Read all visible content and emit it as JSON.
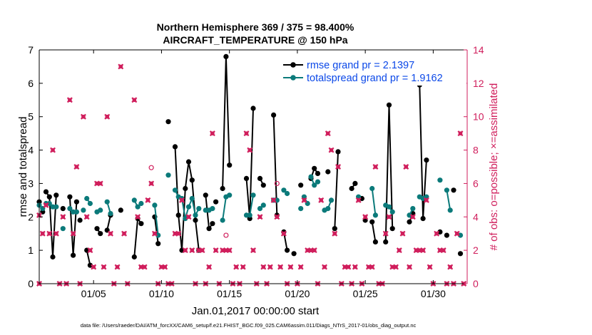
{
  "chart_data": {
    "type": "line",
    "title_line1": "Northern Hemisphere 369 / 375 = 98.400%",
    "title_line2": "AIRCRAFT_TEMPERATURE @ 150 hPa",
    "xlabel": "Jan.01,2017 00:00:00 start",
    "ylabel_left": "rmse and totalspread",
    "ylabel_right": "# of obs: o=possible; ×=assimilated",
    "footer": "data file: /Users/raeder/DAI/ATM_forcXX/CAM6_setup/f.e21.FHIST_BGC.f09_025.CAM6assim.011/Diags_NTrS_2017-01/obs_diag_output.nc",
    "xlim": [
      1.0,
      32.5
    ],
    "ylim_left": [
      0,
      7
    ],
    "ylim_right": [
      0,
      14
    ],
    "x_ticks": [
      {
        "value": 5,
        "label": "01/05"
      },
      {
        "value": 10,
        "label": "01/10"
      },
      {
        "value": 15,
        "label": "01/15"
      },
      {
        "value": 20,
        "label": "01/20"
      },
      {
        "value": 25,
        "label": "01/25"
      },
      {
        "value": 30,
        "label": "01/30"
      }
    ],
    "y_ticks_left": [
      0,
      1,
      2,
      3,
      4,
      5,
      6,
      7
    ],
    "y_ticks_right": [
      0,
      2,
      4,
      6,
      8,
      10,
      12,
      14
    ],
    "colors": {
      "rmse": "#000000",
      "spread": "#0b7a7a",
      "obs": "#d01e5c",
      "legend_text": "#0b48e8"
    },
    "series": [
      {
        "name": "rmse grand pr = 2.1397",
        "color": "#000000",
        "segments": [
          [
            [
              1.0,
              2.45
            ],
            [
              1.25,
              2.15
            ]
          ],
          [
            [
              1.5,
              2.75
            ],
            [
              1.75,
              2.6
            ],
            [
              2.0,
              0.8
            ],
            [
              2.25,
              2.65
            ]
          ],
          [
            [
              2.75,
              2.25
            ]
          ],
          [
            [
              3.25,
              2.6
            ],
            [
              3.5,
              0.85
            ],
            [
              3.75,
              2.45
            ]
          ],
          [
            [
              4.0,
              1.9
            ]
          ],
          [
            [
              4.5,
              1.0
            ],
            [
              4.75,
              0.55
            ]
          ],
          [
            [
              5.25,
              1.65
            ],
            [
              5.5,
              1.5
            ]
          ],
          [
            [
              6.0,
              1.6
            ],
            [
              6.25,
              2.05
            ]
          ],
          [
            [
              7.0,
              2.2
            ]
          ],
          [
            [
              8.0,
              0.8
            ],
            [
              8.25,
              1.95
            ],
            [
              8.5,
              1.8
            ]
          ],
          [
            [
              9.5,
              2.0
            ],
            [
              9.75,
              1.2
            ]
          ],
          [
            [
              10.5,
              4.85
            ]
          ],
          [
            [
              11.0,
              4.1
            ],
            [
              11.25,
              2.05
            ],
            [
              11.5,
              1.0
            ],
            [
              11.75,
              2.85
            ],
            [
              12.0,
              3.65
            ],
            [
              12.25,
              3.1
            ],
            [
              12.5,
              1.9
            ],
            [
              12.75,
              1.0
            ]
          ],
          [
            [
              13.25,
              2.65
            ],
            [
              13.5,
              1.65
            ],
            [
              13.75,
              1.8
            ]
          ],
          [
            [
              14.0,
              2.45
            ]
          ],
          [
            [
              14.5,
              2.85
            ],
            [
              14.75,
              6.8
            ],
            [
              15.0,
              3.55
            ]
          ],
          [
            [
              16.25,
              3.15
            ],
            [
              16.5,
              1.95
            ],
            [
              16.75,
              5.25
            ]
          ],
          [
            [
              17.25,
              3.15
            ],
            [
              17.5,
              2.95
            ]
          ],
          [
            [
              18.25,
              5.05
            ],
            [
              18.5,
              2.05
            ]
          ],
          [
            [
              19.0,
              1.55
            ],
            [
              19.25,
              1.0
            ]
          ],
          [
            [
              19.75,
              0.9
            ]
          ],
          [
            [
              20.25,
              2.95
            ]
          ],
          [
            [
              21.0,
              3.15
            ],
            [
              21.25,
              3.45
            ],
            [
              21.5,
              3.3
            ]
          ],
          [
            [
              22.25,
              3.35
            ]
          ],
          [
            [
              22.75,
              1.65
            ],
            [
              23.0,
              3.95
            ]
          ],
          [
            [
              24.0,
              2.85
            ],
            [
              24.25,
              3.0
            ]
          ],
          [
            [
              24.75,
              2.55
            ]
          ],
          [
            [
              25.0,
              1.9
            ]
          ],
          [
            [
              25.5,
              1.85
            ],
            [
              25.75,
              1.25
            ]
          ],
          [
            [
              26.5,
              1.25
            ],
            [
              26.75,
              5.35
            ],
            [
              27.0,
              1.65
            ]
          ],
          [
            [
              28.25,
              1.85
            ],
            [
              28.5,
              2.1
            ]
          ],
          [
            [
              29.0,
              5.95
            ],
            [
              29.25,
              1.95
            ],
            [
              29.5,
              3.7
            ]
          ],
          [
            [
              30.5,
              1.55
            ]
          ],
          [
            [
              31.0,
              1.45
            ]
          ],
          [
            [
              31.5,
              2.8
            ]
          ],
          [
            [
              32.0,
              0.9
            ]
          ]
        ]
      },
      {
        "name": "totalspread grand pr = 1.9162",
        "color": "#0b7a7a",
        "segments": [
          [
            [
              1.0,
              2.35
            ],
            [
              1.25,
              2.25
            ]
          ],
          [
            [
              1.5,
              2.4
            ],
            [
              1.75,
              2.4
            ],
            [
              2.0,
              2.3
            ],
            [
              2.25,
              2.3
            ]
          ],
          [
            [
              2.75,
              1.65
            ]
          ],
          [
            [
              3.25,
              2.25
            ],
            [
              3.5,
              2.15
            ],
            [
              3.75,
              2.15
            ]
          ],
          [
            [
              4.25,
              2.2
            ]
          ],
          [
            [
              4.5,
              2.55
            ],
            [
              4.75,
              2.4
            ]
          ],
          [
            [
              5.25,
              2.15
            ],
            [
              5.5,
              2.2
            ]
          ],
          [
            [
              6.0,
              2.45
            ],
            [
              6.25,
              2.1
            ]
          ],
          [
            [
              8.0,
              2.5
            ],
            [
              8.25,
              2.3
            ],
            [
              8.5,
              2.4
            ]
          ],
          [
            [
              9.5,
              2.35
            ],
            [
              9.75,
              1.45
            ]
          ],
          [
            [
              10.5,
              3.25
            ]
          ],
          [
            [
              11.0,
              2.8
            ],
            [
              11.25,
              2.6
            ],
            [
              11.5,
              2.55
            ],
            [
              11.75,
              1.95
            ],
            [
              12.0,
              2.3
            ],
            [
              12.25,
              2.55
            ],
            [
              12.5,
              2.05
            ],
            [
              12.75,
              2.25
            ]
          ],
          [
            [
              13.25,
              2.2
            ],
            [
              13.5,
              2.2
            ],
            [
              13.75,
              2.25
            ]
          ],
          [
            [
              14.5,
              1.9
            ],
            [
              14.75,
              2.6
            ],
            [
              15.0,
              2.65
            ]
          ],
          [
            [
              16.25,
              2.05
            ],
            [
              16.5,
              2.05
            ],
            [
              16.75,
              2.65
            ]
          ],
          [
            [
              17.25,
              2.25
            ],
            [
              17.5,
              2.35
            ]
          ],
          [
            [
              18.25,
              2.5
            ],
            [
              18.5,
              2.5
            ]
          ],
          [
            [
              19.0,
              2.8
            ],
            [
              19.25,
              2.7
            ]
          ],
          [
            [
              20.25,
              2.25
            ]
          ],
          [
            [
              20.5,
              2.6
            ],
            [
              20.75,
              2.4
            ]
          ],
          [
            [
              21.0,
              3.2
            ],
            [
              21.25,
              2.95
            ],
            [
              21.5,
              3.05
            ]
          ],
          [
            [
              22.0,
              2.2
            ],
            [
              22.25,
              2.25
            ],
            [
              22.5,
              2.5
            ]
          ],
          [
            [
              24.5,
              2.6
            ]
          ],
          [
            [
              25.5,
              2.85
            ],
            [
              25.75,
              2.05
            ]
          ],
          [
            [
              26.5,
              2.35
            ],
            [
              26.75,
              2.3
            ],
            [
              27.0,
              2.15
            ]
          ],
          [
            [
              28.25,
              2.05
            ],
            [
              28.5,
              2.25
            ]
          ],
          [
            [
              29.0,
              2.6
            ],
            [
              29.25,
              2.55
            ],
            [
              29.5,
              2.6
            ]
          ],
          [
            [
              30.5,
              3.1
            ]
          ],
          [
            [
              31.0,
              2.8
            ],
            [
              31.25,
              2.2
            ]
          ],
          [
            [
              32.0,
              1.45
            ]
          ]
        ]
      }
    ],
    "obs_assimilated": [
      [
        1.0,
        4.1
      ],
      [
        1.0,
        0.0
      ],
      [
        1.25,
        3.0
      ],
      [
        1.5,
        4.7
      ],
      [
        1.75,
        3.0
      ],
      [
        2.0,
        8.0
      ],
      [
        2.25,
        3.0
      ],
      [
        2.5,
        0.0
      ],
      [
        2.75,
        4.0
      ],
      [
        3.0,
        0.0
      ],
      [
        3.25,
        11.0
      ],
      [
        3.5,
        3.0
      ],
      [
        3.75,
        7.0
      ],
      [
        4.0,
        0.0
      ],
      [
        4.25,
        10.0
      ],
      [
        4.5,
        4.0
      ],
      [
        4.75,
        2.0
      ],
      [
        5.0,
        1.0
      ],
      [
        5.25,
        6.0
      ],
      [
        5.5,
        6.0
      ],
      [
        5.75,
        1.0
      ],
      [
        6.0,
        10.0
      ],
      [
        6.25,
        3.0
      ],
      [
        6.5,
        0.0
      ],
      [
        6.75,
        1.0
      ],
      [
        7.0,
        13.0
      ],
      [
        7.25,
        3.0
      ],
      [
        7.5,
        0.0
      ],
      [
        8.0,
        11.0
      ],
      [
        8.25,
        4.0
      ],
      [
        8.5,
        1.0
      ],
      [
        8.75,
        1.0
      ],
      [
        9.0,
        5.0
      ],
      [
        9.25,
        6.0
      ],
      [
        9.5,
        3.0
      ],
      [
        9.75,
        0.0
      ],
      [
        10.0,
        1.0
      ],
      [
        10.25,
        1.0
      ],
      [
        10.5,
        0.0
      ],
      [
        10.75,
        0.0
      ],
      [
        11.0,
        3.0
      ],
      [
        11.25,
        3.0
      ],
      [
        11.5,
        5.0
      ],
      [
        11.75,
        2.0
      ],
      [
        12.0,
        4.0
      ],
      [
        12.25,
        2.0
      ],
      [
        12.5,
        0.0
      ],
      [
        12.75,
        2.0
      ],
      [
        13.0,
        2.0
      ],
      [
        13.25,
        0.0
      ],
      [
        13.5,
        1.0
      ],
      [
        13.75,
        9.0
      ],
      [
        14.0,
        2.0
      ],
      [
        14.25,
        0.0
      ],
      [
        14.5,
        2.0
      ],
      [
        14.75,
        2.0
      ],
      [
        15.0,
        2.0
      ],
      [
        15.25,
        0.0
      ],
      [
        15.5,
        1.0
      ],
      [
        15.75,
        0.0
      ],
      [
        16.0,
        1.0
      ],
      [
        16.25,
        9.0
      ],
      [
        16.5,
        8.0
      ],
      [
        16.75,
        2.0
      ],
      [
        17.0,
        0.0
      ],
      [
        17.25,
        4.0
      ],
      [
        17.5,
        1.0
      ],
      [
        17.75,
        0.0
      ],
      [
        18.0,
        1.0
      ],
      [
        18.25,
        5.0
      ],
      [
        18.5,
        4.0
      ],
      [
        18.75,
        1.0
      ],
      [
        19.0,
        3.0
      ],
      [
        19.25,
        0.0
      ],
      [
        19.5,
        1.0
      ],
      [
        20.0,
        0.0
      ],
      [
        20.25,
        1.0
      ],
      [
        20.5,
        5.0
      ],
      [
        20.75,
        2.0
      ],
      [
        21.0,
        2.0
      ],
      [
        21.25,
        2.0
      ],
      [
        21.5,
        0.0
      ],
      [
        21.75,
        5.0
      ],
      [
        22.0,
        1.0
      ],
      [
        22.25,
        9.0
      ],
      [
        22.5,
        8.0
      ],
      [
        22.75,
        3.0
      ],
      [
        23.0,
        7.0
      ],
      [
        23.25,
        0.0
      ],
      [
        23.5,
        1.0
      ],
      [
        23.75,
        1.0
      ],
      [
        24.0,
        0.0
      ],
      [
        24.25,
        1.0
      ],
      [
        24.5,
        5.0
      ],
      [
        24.75,
        0.0
      ],
      [
        25.0,
        4.0
      ],
      [
        25.25,
        1.0
      ],
      [
        25.5,
        1.0
      ],
      [
        25.75,
        7.0
      ],
      [
        26.0,
        0.0
      ],
      [
        26.25,
        0.0
      ],
      [
        26.5,
        3.0
      ],
      [
        26.75,
        4.0
      ],
      [
        27.0,
        1.0
      ],
      [
        27.25,
        1.0
      ],
      [
        27.5,
        2.0
      ],
      [
        27.75,
        3.0
      ],
      [
        28.0,
        7.0
      ],
      [
        28.25,
        1.0
      ],
      [
        28.5,
        4.0
      ],
      [
        28.75,
        2.0
      ],
      [
        29.0,
        2.0
      ],
      [
        29.25,
        2.0
      ],
      [
        29.5,
        5.0
      ],
      [
        29.75,
        1.0
      ],
      [
        30.0,
        0.0
      ],
      [
        30.25,
        3.0
      ],
      [
        30.5,
        2.0
      ],
      [
        30.75,
        2.0
      ],
      [
        31.0,
        0.0
      ],
      [
        31.25,
        1.0
      ],
      [
        31.5,
        0.0
      ],
      [
        31.75,
        3.0
      ],
      [
        32.0,
        9.0
      ],
      [
        32.25,
        0.0
      ]
    ],
    "obs_possible": [
      [
        9.25,
        6.95
      ],
      [
        14.75,
        2.9
      ],
      [
        18.5,
        6.0
      ]
    ]
  }
}
